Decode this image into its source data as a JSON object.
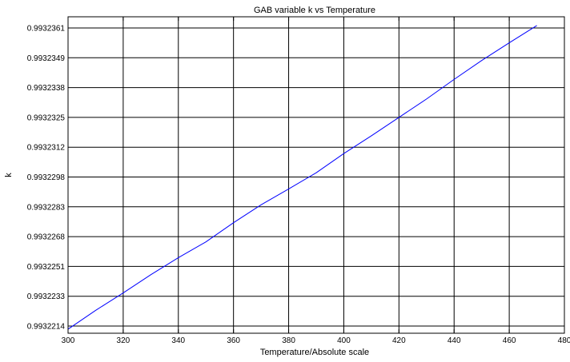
{
  "chart_data": {
    "type": "line",
    "title": "GAB variable k vs Temperature",
    "xlabel": "Temperature/Absolute scale",
    "ylabel": "k",
    "xlim": [
      300,
      480
    ],
    "x_ticks": [
      300,
      320,
      340,
      360,
      380,
      400,
      420,
      440,
      460,
      480
    ],
    "y_tick_labels": [
      "0.9932214",
      "0.9932233",
      "0.9932251",
      "0.9932268",
      "0.9932283",
      "0.9932298",
      "0.9932312",
      "0.9932325",
      "0.9932338",
      "0.9932349",
      "0.9932361"
    ],
    "grid": true,
    "line_color": "#0000ff",
    "series": [
      {
        "x": [
          300,
          310,
          320,
          330,
          340,
          350,
          360,
          370,
          380,
          390,
          400,
          410,
          420,
          430,
          440,
          450,
          460,
          470
        ],
        "y": [
          0.9932212,
          0.9932224,
          0.9932235,
          0.9932246,
          0.9932256,
          0.9932265,
          0.9932275,
          0.9932284,
          0.9932292,
          0.99323,
          0.9932309,
          0.9932317,
          0.9932325,
          0.9932333,
          0.9932341,
          0.9932348,
          0.9932355,
          0.9932362
        ]
      }
    ]
  }
}
